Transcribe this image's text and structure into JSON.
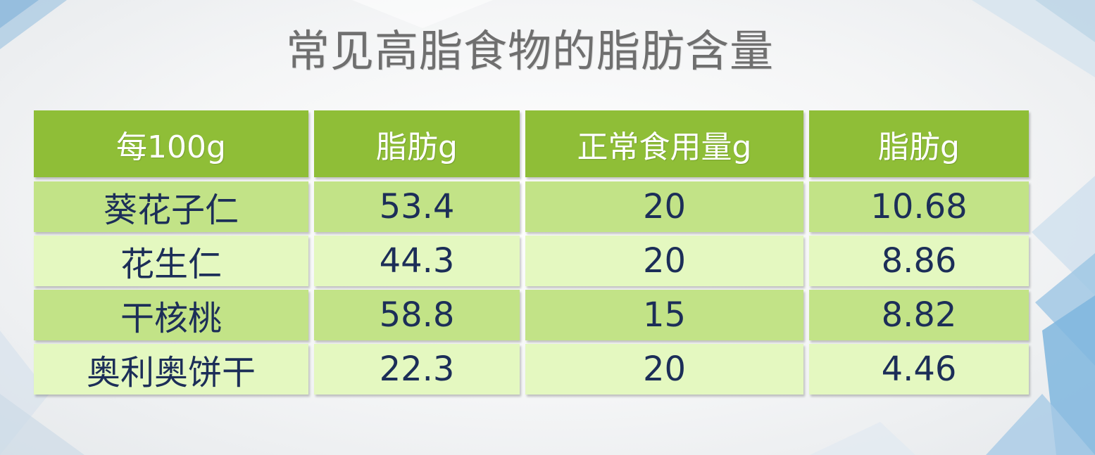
{
  "slide": {
    "title": "常见高脂食物的脂肪含量"
  },
  "table": {
    "headers": [
      "每100g",
      "脂肪g",
      "正常食用量g",
      "脂肪g"
    ],
    "rows": [
      [
        "葵花子仁",
        "53.4",
        "20",
        "10.68"
      ],
      [
        "花生仁",
        "44.3",
        "20",
        "8.86"
      ],
      [
        "干核桃",
        "58.8",
        "15",
        "8.82"
      ],
      [
        "奥利奥饼干",
        "22.3",
        "20",
        "4.46"
      ]
    ]
  },
  "colors": {
    "header_bg": "#8fbe37",
    "row_dark_bg": "#c2e387",
    "row_light_bg": "#e4f8c0",
    "cell_text": "#1c2e58",
    "title_text": "#6f6f6f"
  }
}
